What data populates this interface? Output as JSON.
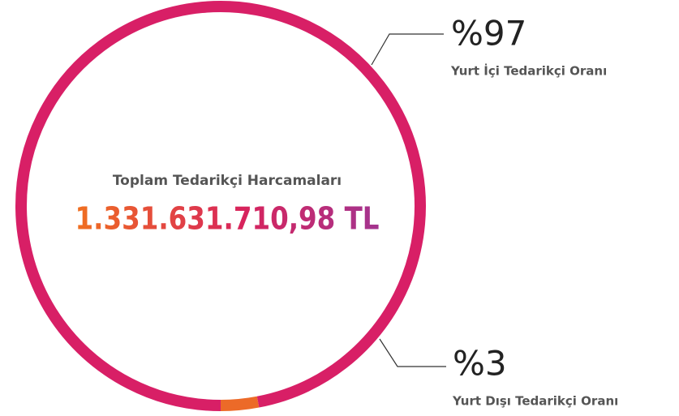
{
  "chart_data": {
    "type": "donut",
    "title": "Toplam Tedarikçi Harcamaları",
    "total_label": "1.331.631.710,98 TL",
    "categories": [
      "Yurt İçi Tedarikçi Oranı",
      "Yurt Dışı Tedarikçi Oranı"
    ],
    "values": [
      97,
      3
    ],
    "value_labels": [
      "%97",
      "%3"
    ],
    "colors": [
      "#d81f66",
      "#ec6a28"
    ]
  }
}
